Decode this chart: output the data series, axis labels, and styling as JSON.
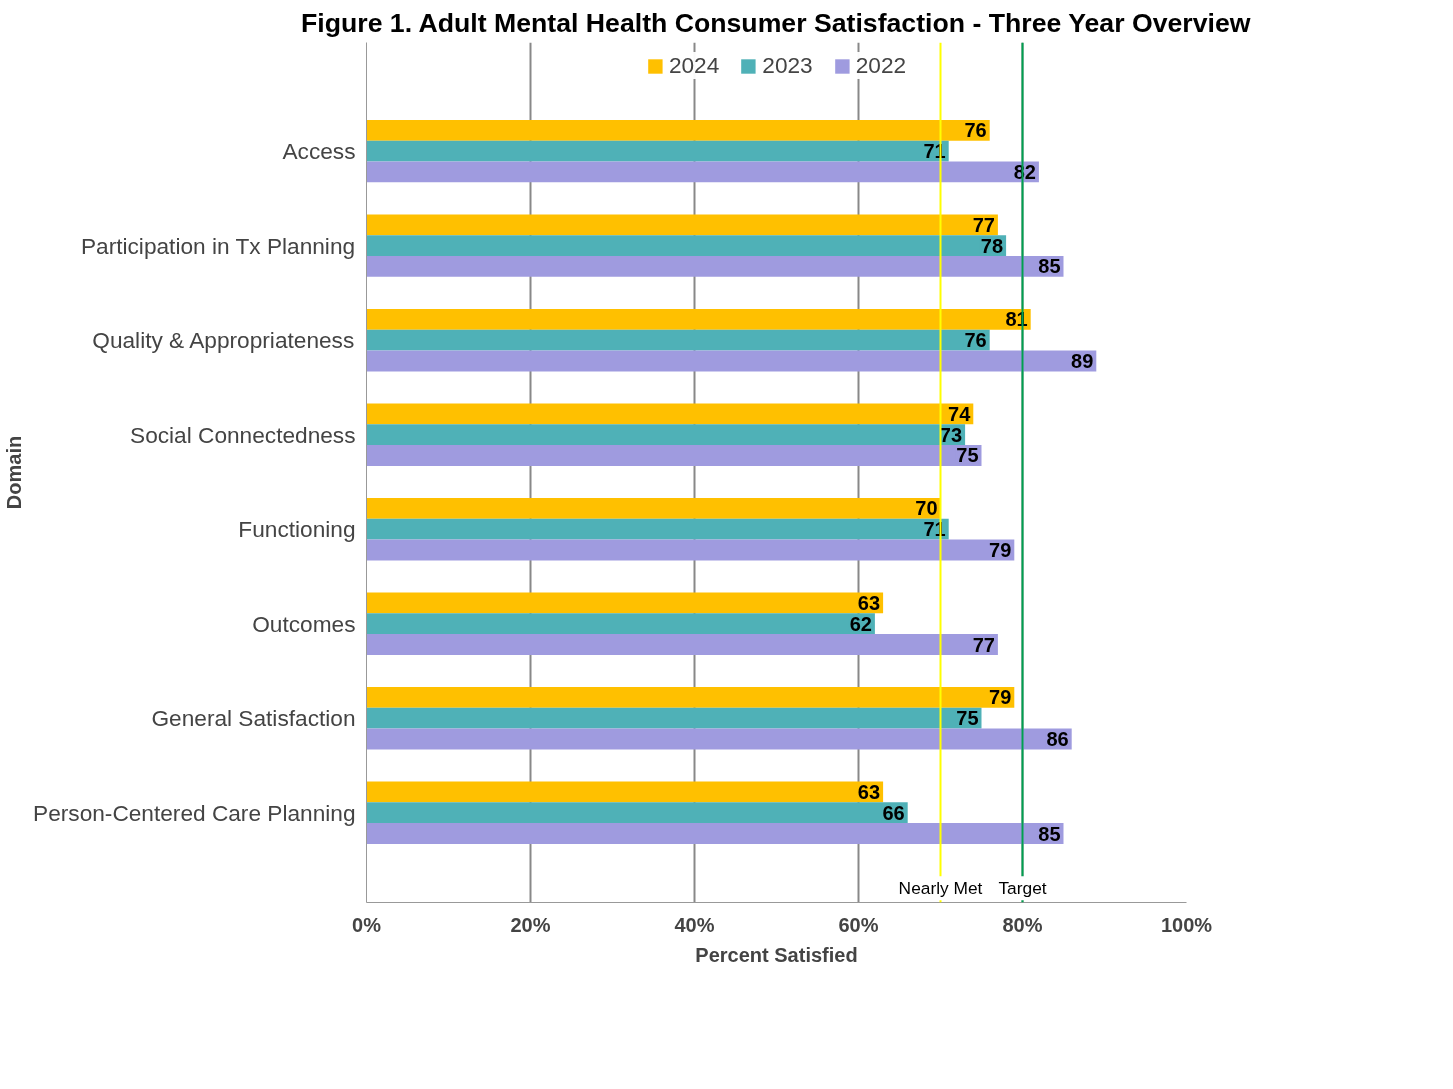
{
  "chart_data": {
    "type": "bar",
    "orientation": "horizontal",
    "title": "Figure 1. Adult Mental Health Consumer Satisfaction - Three Year Overview",
    "xlabel": "Percent Satisfied",
    "ylabel": "Domain",
    "categories": [
      "Access",
      "Participation in Tx Planning",
      "Quality & Appropriateness",
      "Social Connectedness",
      "Functioning",
      "Outcomes",
      "General Satisfaction",
      "Person-Centered Care Planning"
    ],
    "series": [
      {
        "name": "2024",
        "color": "#ffc000",
        "values": [
          76,
          77,
          81,
          74,
          70,
          63,
          79,
          63
        ]
      },
      {
        "name": "2023",
        "color": "#4fb1b7",
        "values": [
          71,
          78,
          76,
          73,
          71,
          62,
          75,
          66
        ]
      },
      {
        "name": "2022",
        "color": "#9f9bdf",
        "values": [
          82,
          85,
          89,
          75,
          79,
          77,
          86,
          85
        ]
      }
    ],
    "xlim": [
      0,
      100
    ],
    "xticks": [
      {
        "value": 0,
        "label": "0%"
      },
      {
        "value": 20,
        "label": "20%"
      },
      {
        "value": 40,
        "label": "40%"
      },
      {
        "value": 60,
        "label": "60%"
      },
      {
        "value": 80,
        "label": "80%"
      },
      {
        "value": 100,
        "label": "100%"
      }
    ],
    "ref_lines": [
      {
        "axis": "x",
        "value": 70,
        "label": "Nearly Met",
        "color": "#ffff00"
      },
      {
        "axis": "x",
        "value": 80,
        "label": "Target",
        "color": "#00a050"
      }
    ],
    "grid": "x",
    "legend": "top",
    "data_labels": true
  }
}
